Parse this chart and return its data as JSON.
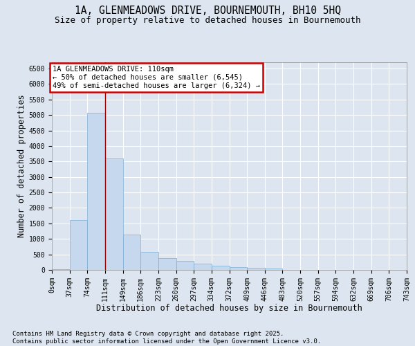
{
  "title1": "1A, GLENMEADOWS DRIVE, BOURNEMOUTH, BH10 5HQ",
  "title2": "Size of property relative to detached houses in Bournemouth",
  "xlabel": "Distribution of detached houses by size in Bournemouth",
  "ylabel": "Number of detached properties",
  "bar_color": "#c5d8ee",
  "bar_edge_color": "#7aaed4",
  "bin_labels": [
    "0sqm",
    "37sqm",
    "74sqm",
    "111sqm",
    "149sqm",
    "186sqm",
    "223sqm",
    "260sqm",
    "297sqm",
    "334sqm",
    "372sqm",
    "409sqm",
    "446sqm",
    "483sqm",
    "520sqm",
    "557sqm",
    "594sqm",
    "632sqm",
    "669sqm",
    "706sqm",
    "743sqm"
  ],
  "bar_heights": [
    30,
    1600,
    5080,
    3600,
    1150,
    580,
    370,
    300,
    200,
    130,
    80,
    60,
    40,
    10,
    5,
    0,
    0,
    0,
    0,
    0
  ],
  "ylim": [
    0,
    6700
  ],
  "yticks": [
    0,
    500,
    1000,
    1500,
    2000,
    2500,
    3000,
    3500,
    4000,
    4500,
    5000,
    5500,
    6000,
    6500
  ],
  "vline_x": 3,
  "annotation_text": "1A GLENMEADOWS DRIVE: 110sqm\n← 50% of detached houses are smaller (6,545)\n49% of semi-detached houses are larger (6,324) →",
  "annotation_box_color": "#ffffff",
  "annotation_border_color": "#cc0000",
  "footer_text": "Contains HM Land Registry data © Crown copyright and database right 2025.\nContains public sector information licensed under the Open Government Licence v3.0.",
  "background_color": "#dde6f0",
  "plot_bg_color": "#dde6f0",
  "grid_color": "#ffffff",
  "vline_color": "#990000",
  "title1_fontsize": 10.5,
  "title2_fontsize": 9,
  "axis_label_fontsize": 8.5,
  "tick_fontsize": 7,
  "footer_fontsize": 6.5,
  "annot_fontsize": 7.5
}
